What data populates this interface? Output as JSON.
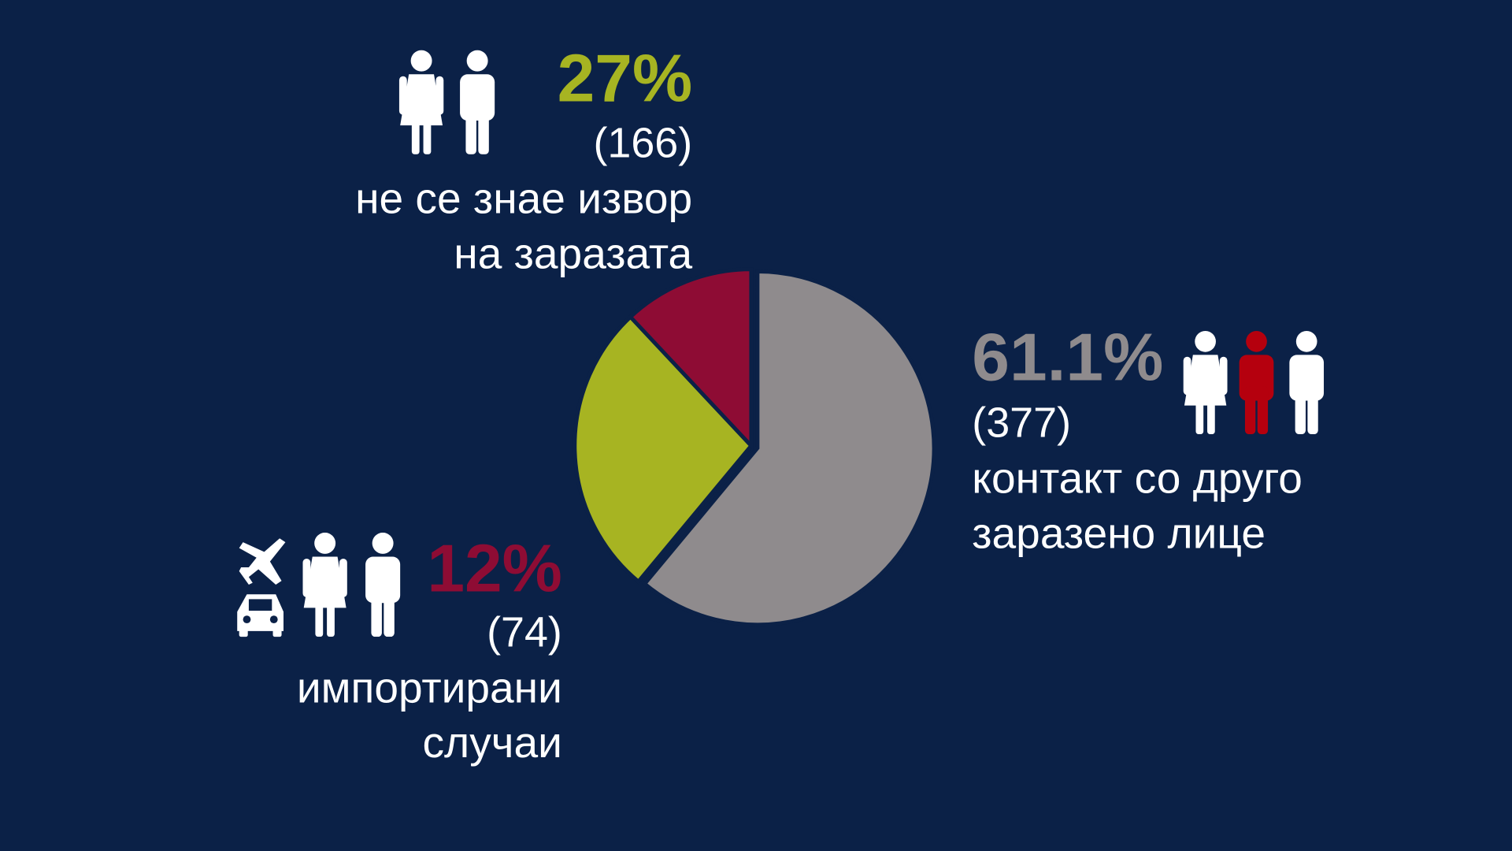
{
  "chart_data": {
    "type": "pie",
    "categories": [
      [
        "контакт со друго",
        "заразено лице"
      ],
      [
        "не се знае извор",
        "на заразата"
      ],
      [
        "импортирани",
        "случаи"
      ]
    ],
    "values": [
      61.1,
      27,
      12
    ],
    "value_labels": [
      "61.1%",
      "27%",
      "12%"
    ],
    "counts": [
      377,
      166,
      74
    ],
    "count_labels": [
      "(377)",
      "(166)",
      "(74)"
    ],
    "colors": [
      "#8f8b8d",
      "#a7b422",
      "#8e0c34"
    ]
  }
}
